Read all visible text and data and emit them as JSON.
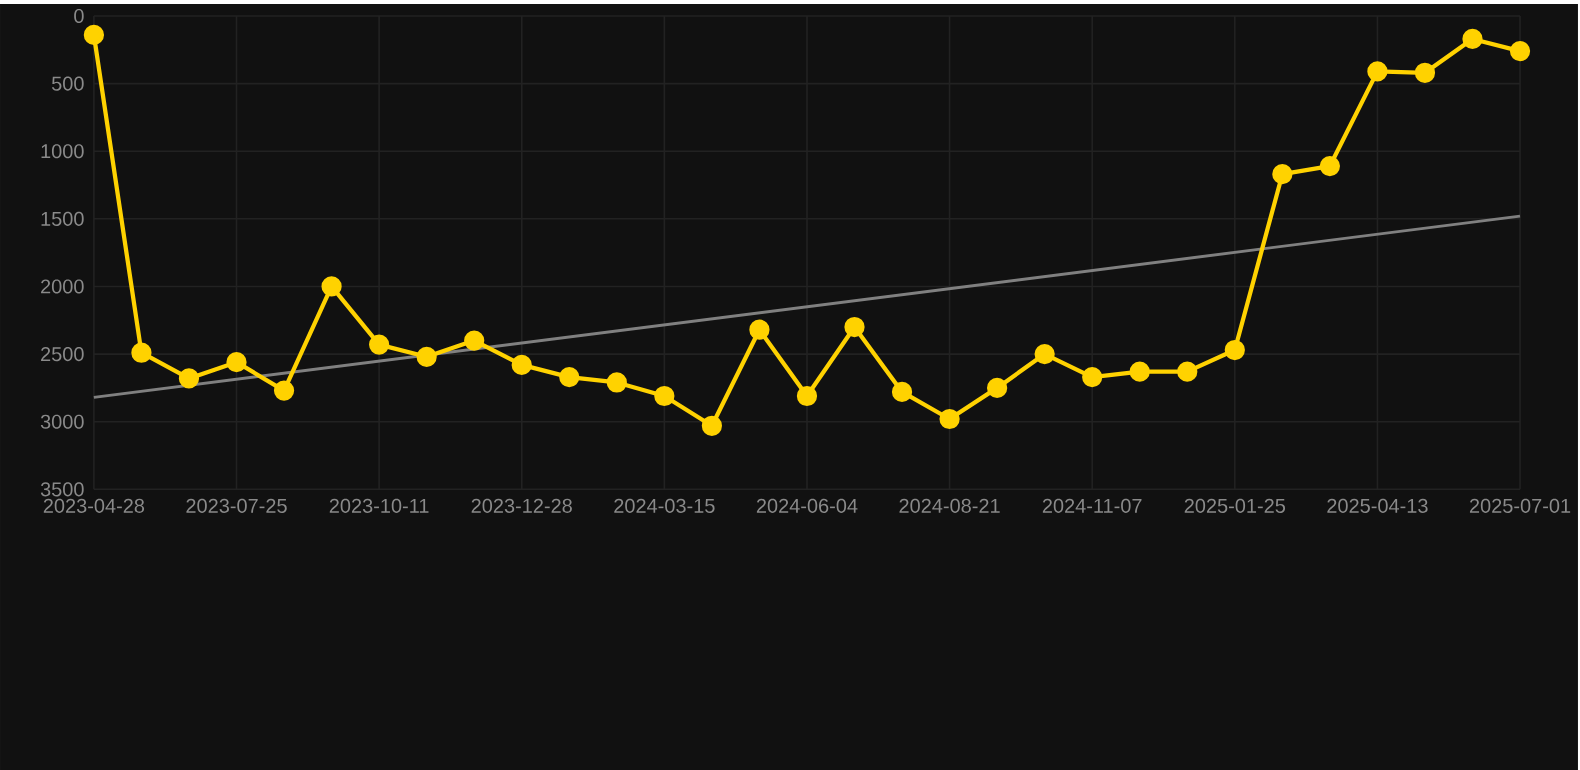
{
  "chart_data": {
    "type": "line",
    "categories": [
      "2023-04-28",
      null,
      null,
      "2023-07-25",
      null,
      null,
      "2023-10-11",
      null,
      null,
      "2023-12-28",
      null,
      null,
      "2024-03-15",
      null,
      null,
      "2024-06-04",
      null,
      null,
      "2024-08-21",
      null,
      null,
      "2024-11-07",
      null,
      null,
      "2025-01-25",
      null,
      null,
      "2025-04-13",
      null,
      null,
      "2025-07-01"
    ],
    "series": [
      {
        "color": "#ffd200",
        "values": [
          140,
          2490,
          2680,
          2560,
          2770,
          2000,
          2430,
          2520,
          2400,
          2580,
          2670,
          2710,
          2810,
          3030,
          2320,
          2810,
          2300,
          2780,
          2980,
          2750,
          2500,
          2670,
          2630,
          2630,
          2470,
          1170,
          1110,
          410,
          420,
          170,
          260
        ]
      },
      {
        "type": "line",
        "marker": "none",
        "color": "#808080",
        "values": [
          2820,
          null,
          null,
          null,
          null,
          null,
          null,
          null,
          null,
          null,
          null,
          null,
          null,
          null,
          null,
          null,
          null,
          null,
          null,
          null,
          null,
          null,
          null,
          null,
          null,
          null,
          null,
          null,
          null,
          null,
          1480
        ]
      }
    ],
    "ylim": [
      3500,
      0
    ],
    "yticks": [
      0,
      500,
      1000,
      1500,
      2000,
      2500,
      3000,
      3500
    ],
    "grid": true,
    "marker": "circle",
    "line_style": "solid"
  }
}
